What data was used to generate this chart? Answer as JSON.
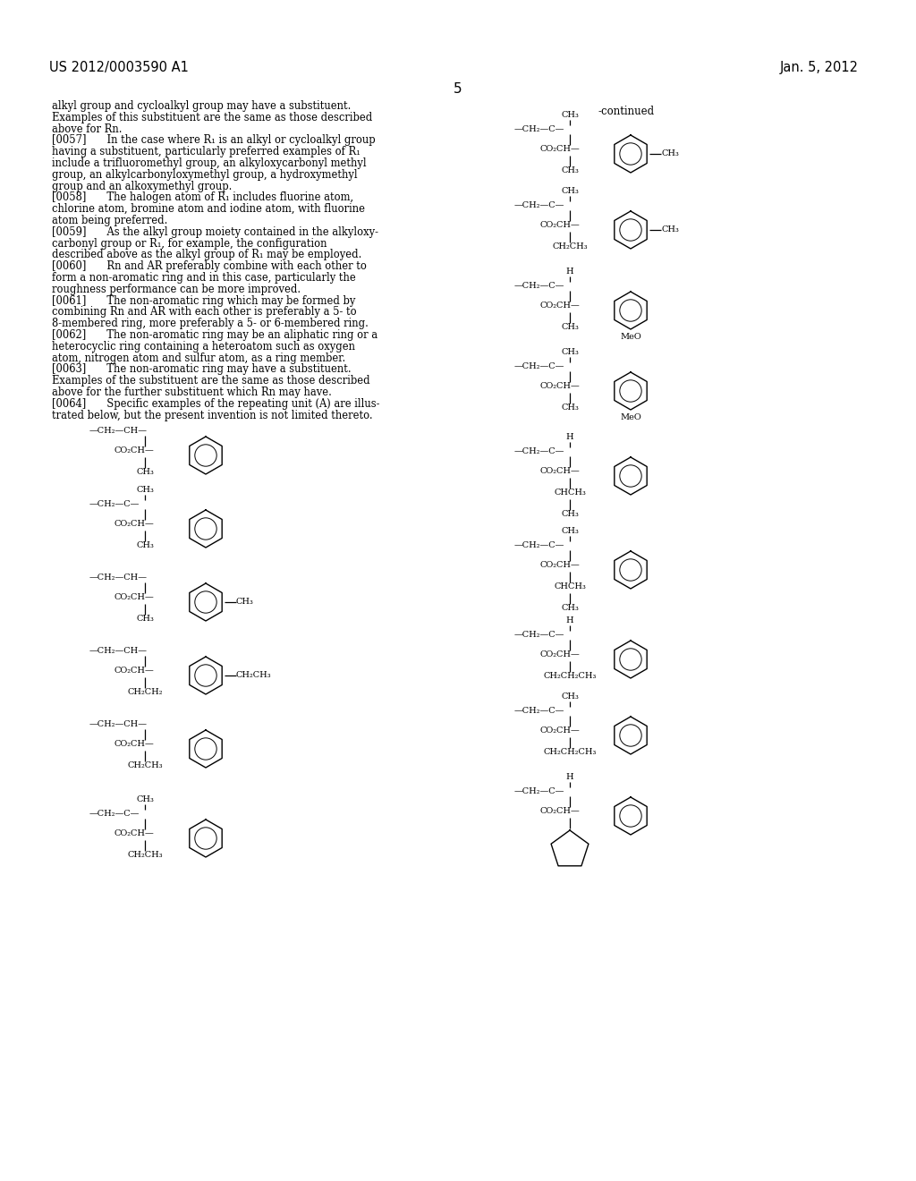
{
  "bg": "#ffffff",
  "header_left": "US 2012/0003590 A1",
  "header_right": "Jan. 5, 2012",
  "page_num": "5",
  "continued": "-continued",
  "body_lines": [
    "alkyl group and cycloalkyl group may have a substituent.",
    "Examples of this substituent are the same as those described",
    "above for Rn.",
    "[0057]  In the case where R₁ is an alkyl or cycloalkyl group",
    "having a substituent, particularly preferred examples of R₁",
    "include a trifluoromethyl group, an alkyloxycarbonyl methyl",
    "group, an alkylcarbonyloxymethyl group, a hydroxymethyl",
    "group and an alkoxymethyl group.",
    "[0058]  The halogen atom of R₁ includes fluorine atom,",
    "chlorine atom, bromine atom and iodine atom, with fluorine",
    "atom being preferred.",
    "[0059]  As the alkyl group moiety contained in the alkyloxy-",
    "carbonyl group or R₁, for example, the configuration",
    "described above as the alkyl group of R₁ may be employed.",
    "[0060]  Rn and AR preferably combine with each other to",
    "form a non-aromatic ring and in this case, particularly the",
    "roughness performance can be more improved.",
    "[0061]  The non-aromatic ring which may be formed by",
    "combining Rn and AR with each other is preferably a 5- to",
    "8-membered ring, more preferably a 5- or 6-membered ring.",
    "[0062]  The non-aromatic ring may be an aliphatic ring or a",
    "heterocyclic ring containing a heteroatom such as oxygen",
    "atom, nitrogen atom and sulfur atom, as a ring member.",
    "[0063]  The non-aromatic ring may have a substituent.",
    "Examples of the substituent are the same as those described",
    "above for the further substituent which Rn may have.",
    "[0064]  Specific examples of the repeating unit (A) are illus-",
    "trated below, but the present invention is not limited thereto."
  ]
}
